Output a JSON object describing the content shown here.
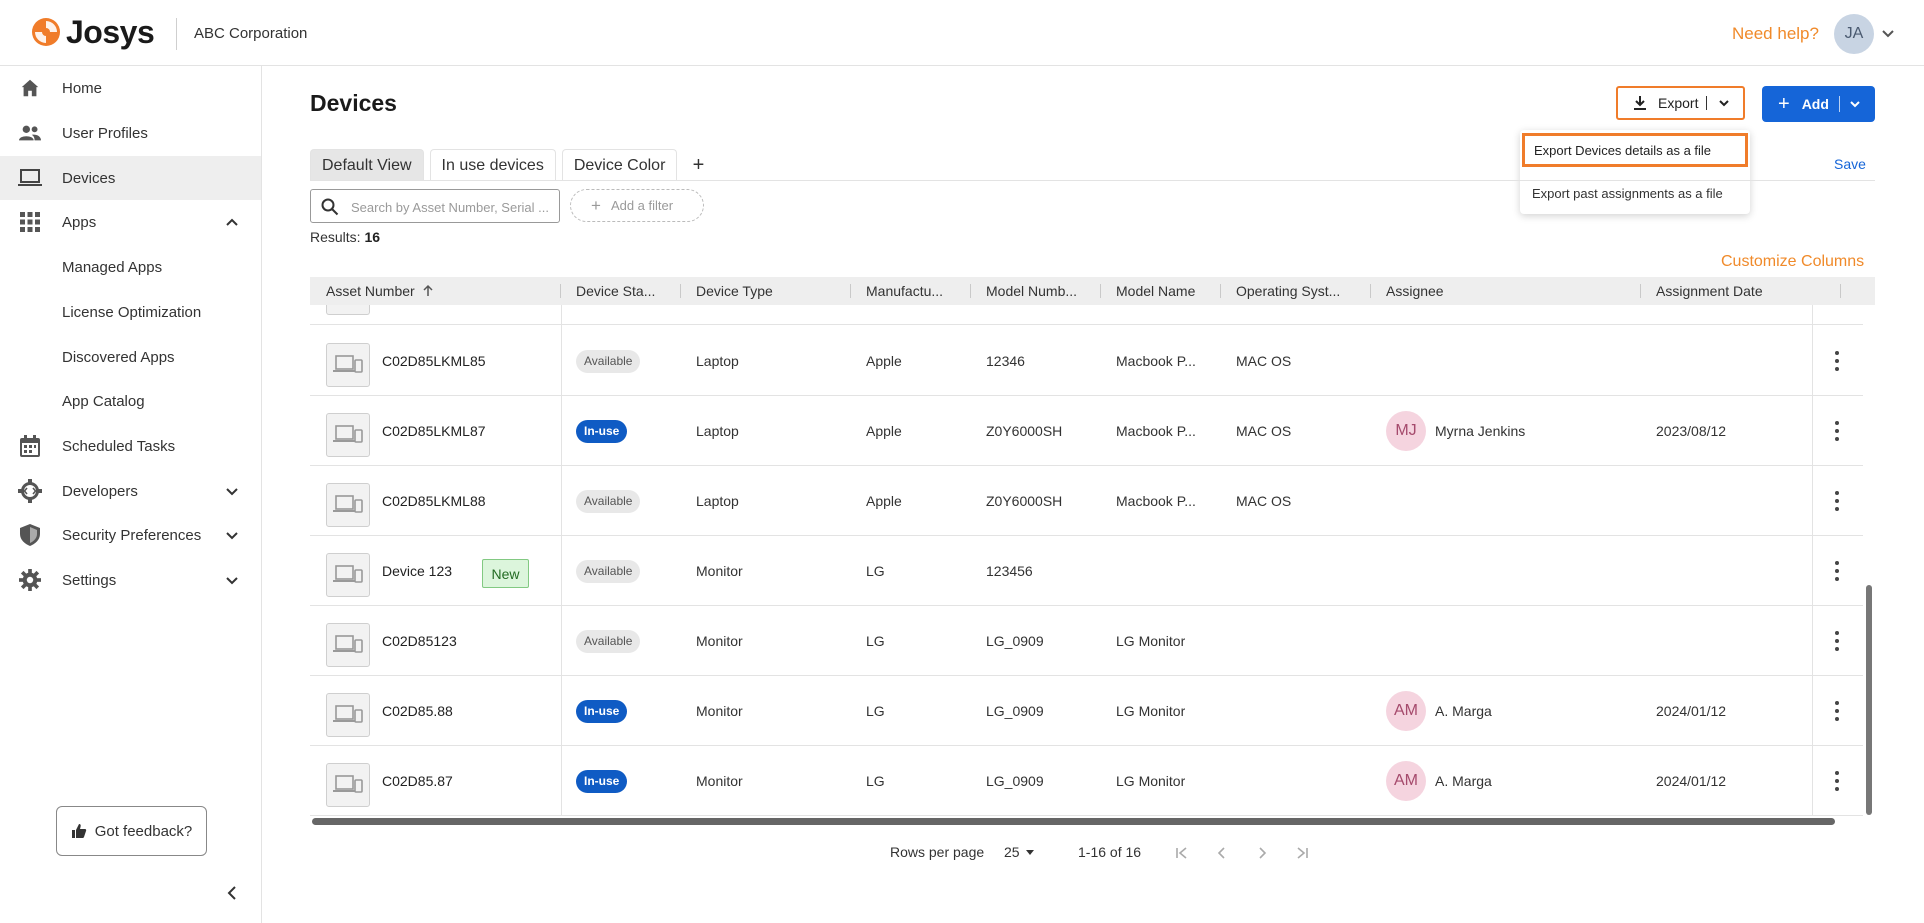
{
  "header": {
    "brand": "Josys",
    "org": "ABC Corporation",
    "need_help": "Need help?",
    "user_initials": "JA",
    "brand_color": "#f07c2a"
  },
  "sidebar": {
    "items": [
      {
        "label": "Home",
        "icon": "home-icon"
      },
      {
        "label": "User Profiles",
        "icon": "users-icon"
      },
      {
        "label": "Devices",
        "icon": "laptop-icon",
        "active": true
      },
      {
        "label": "Apps",
        "icon": "apps-grid-icon",
        "expanded": true
      },
      {
        "label": "Managed Apps"
      },
      {
        "label": "License Optimization"
      },
      {
        "label": "Discovered Apps"
      },
      {
        "label": "App Catalog"
      },
      {
        "label": "Scheduled Tasks",
        "icon": "calendar-icon"
      },
      {
        "label": "Developers",
        "icon": "developer-gear-icon"
      },
      {
        "label": "Security Preferences",
        "icon": "shield-icon"
      },
      {
        "label": "Settings",
        "icon": "gear-icon"
      }
    ],
    "feedback": "Got feedback?"
  },
  "page": {
    "title": "Devices",
    "export_label": "Export",
    "add_label": "Add",
    "save_label": "Save",
    "customize_columns": "Customize Columns",
    "results_label": "Results:",
    "results_count": "16"
  },
  "export_menu": {
    "items": [
      "Export Devices details as a file",
      "Export past assignments as a file"
    ]
  },
  "tabs": [
    "Default View",
    "In use devices",
    "Device Color"
  ],
  "search": {
    "placeholder": "Search by Asset Number, Serial ...",
    "add_filter": "Add a filter"
  },
  "table": {
    "columns": [
      "Asset Number",
      "Device Sta...",
      "Device Type",
      "Manufactu...",
      "Model Numb...",
      "Model Name",
      "Operating Syst...",
      "Assignee",
      "Assignment Date"
    ],
    "rows": [
      {
        "asset": "C02D85LKML85",
        "status": "Available",
        "type": "Laptop",
        "manufacturer": "Apple",
        "model_number": "12346",
        "model_name": "Macbook P...",
        "os": "MAC OS",
        "assignee_initials": "",
        "assignee": "",
        "date": ""
      },
      {
        "asset": "C02D85LKML87",
        "status": "In-use",
        "type": "Laptop",
        "manufacturer": "Apple",
        "model_number": "Z0Y6000SH",
        "model_name": "Macbook P...",
        "os": "MAC OS",
        "assignee_initials": "MJ",
        "assignee": "Myrna Jenkins",
        "date": "2023/08/12"
      },
      {
        "asset": "C02D85LKML88",
        "status": "Available",
        "type": "Laptop",
        "manufacturer": "Apple",
        "model_number": "Z0Y6000SH",
        "model_name": "Macbook P...",
        "os": "MAC OS",
        "assignee_initials": "",
        "assignee": "",
        "date": ""
      },
      {
        "asset": "Device 123",
        "badge": "New",
        "status": "Available",
        "type": "Monitor",
        "manufacturer": "LG",
        "model_number": "123456",
        "model_name": "",
        "os": "",
        "assignee_initials": "",
        "assignee": "",
        "date": ""
      },
      {
        "asset": "C02D85123",
        "status": "Available",
        "type": "Monitor",
        "manufacturer": "LG",
        "model_number": "LG_0909",
        "model_name": "LG Monitor",
        "os": "",
        "assignee_initials": "",
        "assignee": "",
        "date": ""
      },
      {
        "asset": "C02D85.88",
        "status": "In-use",
        "type": "Monitor",
        "manufacturer": "LG",
        "model_number": "LG_0909",
        "model_name": "LG Monitor",
        "os": "",
        "assignee_initials": "AM",
        "assignee": "A. Marga",
        "date": "2024/01/12"
      },
      {
        "asset": "C02D85.87",
        "status": "In-use",
        "type": "Monitor",
        "manufacturer": "LG",
        "model_number": "LG_0909",
        "model_name": "LG Monitor",
        "os": "",
        "assignee_initials": "AM",
        "assignee": "A. Marga",
        "date": "2024/01/12"
      }
    ]
  },
  "pagination": {
    "rows_per_page_label": "Rows per page",
    "rows_per_page": "25",
    "range": "1-16 of 16"
  }
}
